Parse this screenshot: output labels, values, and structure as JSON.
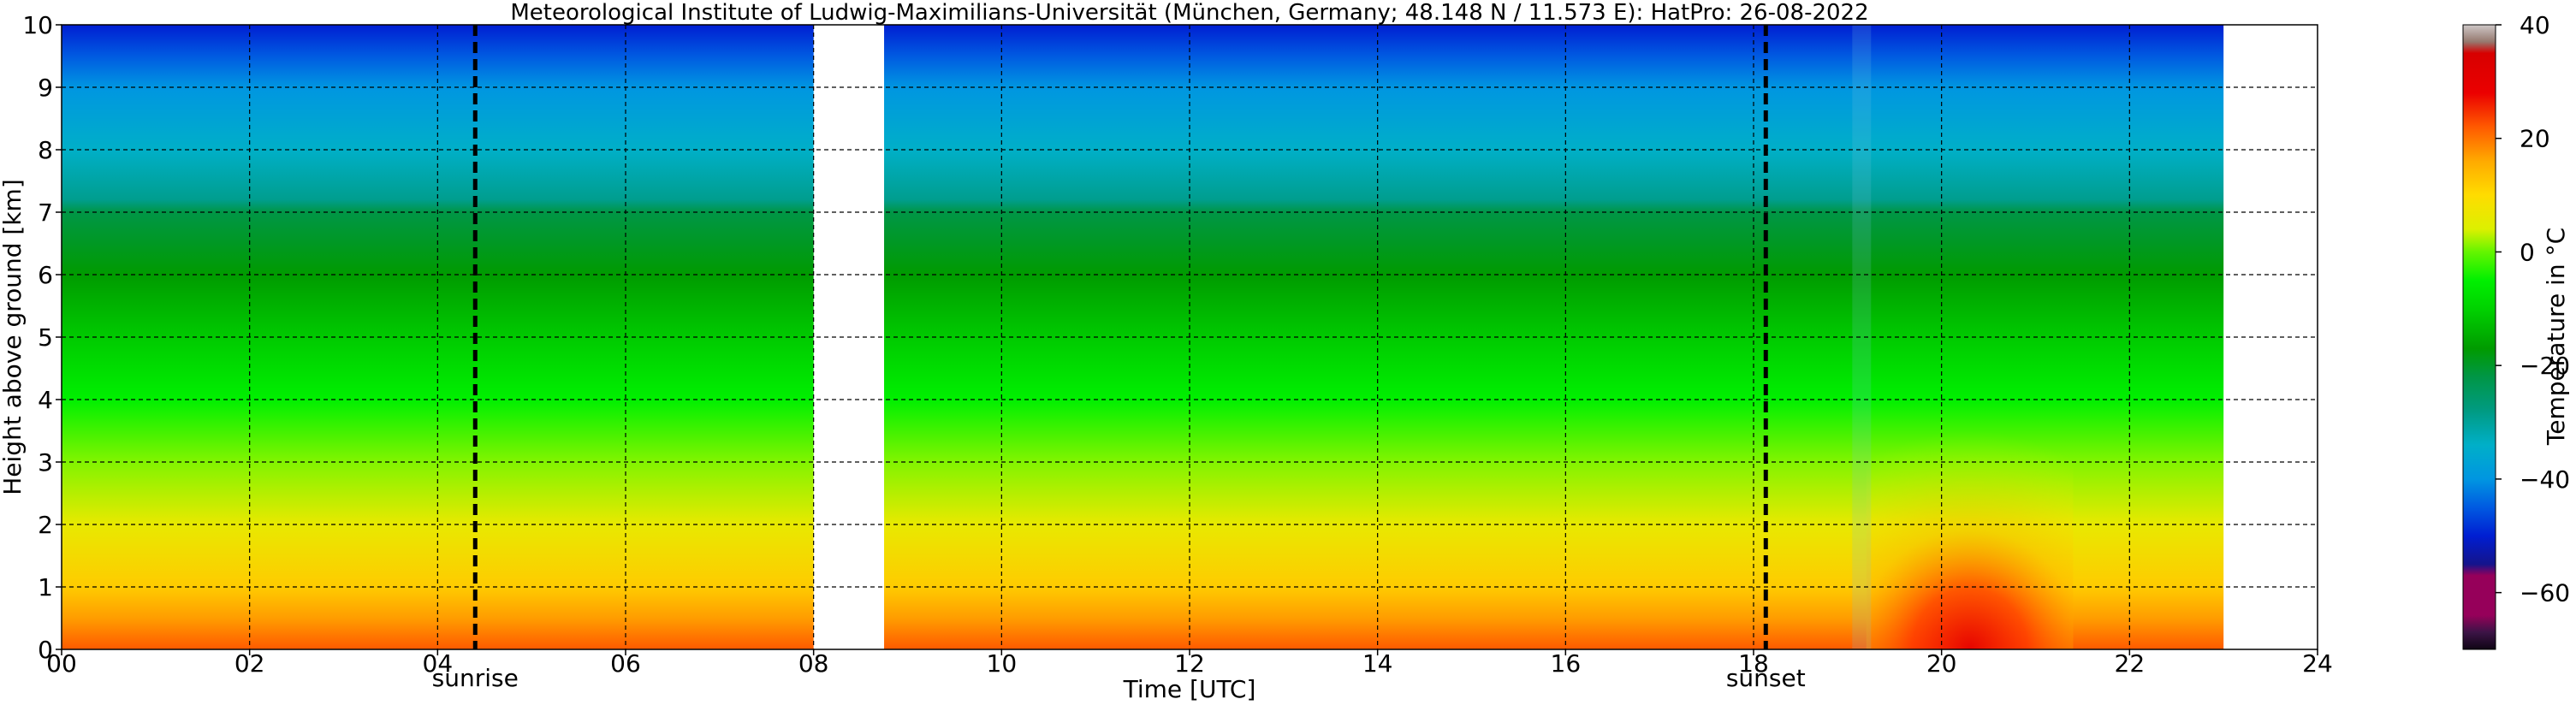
{
  "chart_data": {
    "type": "heatmap",
    "title": "Meteorological Institute of Ludwig-Maximilians-Universität (München, Germany; 48.148 N / 11.573 E):    HatPro: 26-08-2022",
    "xlabel": "Time [UTC]",
    "ylabel": "Height above ground [km]",
    "xlim": [
      0,
      24
    ],
    "ylim": [
      0,
      10
    ],
    "x_ticks": [
      "00",
      "02",
      "04",
      "06",
      "08",
      "10",
      "12",
      "14",
      "16",
      "18",
      "20",
      "22",
      "24"
    ],
    "y_ticks": [
      "0",
      "1",
      "2",
      "3",
      "4",
      "5",
      "6",
      "7",
      "8",
      "9",
      "10"
    ],
    "grid": true,
    "colorbar": {
      "label": "Temperature in $^\\circ$C",
      "label_display": "Temperature in °C",
      "vmin": -70,
      "vmax": 40,
      "ticks": [
        "40",
        "20",
        "0",
        "−20",
        "−40",
        "−60"
      ],
      "tick_values": [
        40,
        20,
        0,
        -20,
        -40,
        -60
      ]
    },
    "events": [
      {
        "label": "sunrise",
        "time": 4.4
      },
      {
        "label": "sunset",
        "time": 18.13
      }
    ],
    "data_segments": [
      {
        "start": 0.0,
        "end": 8.0
      },
      {
        "start": 8.75,
        "end": 23.0
      }
    ],
    "temperature_profile": {
      "heights_km": [
        0.0,
        0.5,
        1.0,
        2.0,
        3.0,
        4.0,
        5.0,
        6.0,
        7.0,
        7.2,
        8.0,
        9.0,
        9.5,
        10.0
      ],
      "temperatures_c": [
        22,
        17,
        12,
        6,
        1,
        -5,
        -11,
        -17,
        -22,
        -29,
        -34,
        -40,
        -45,
        -50
      ]
    },
    "evening_warm_anomaly": {
      "time_range": [
        19.2,
        21.4
      ],
      "peak_time": 20.3,
      "height_range_km": [
        0,
        3.5
      ],
      "surface_max_c": 28
    }
  }
}
